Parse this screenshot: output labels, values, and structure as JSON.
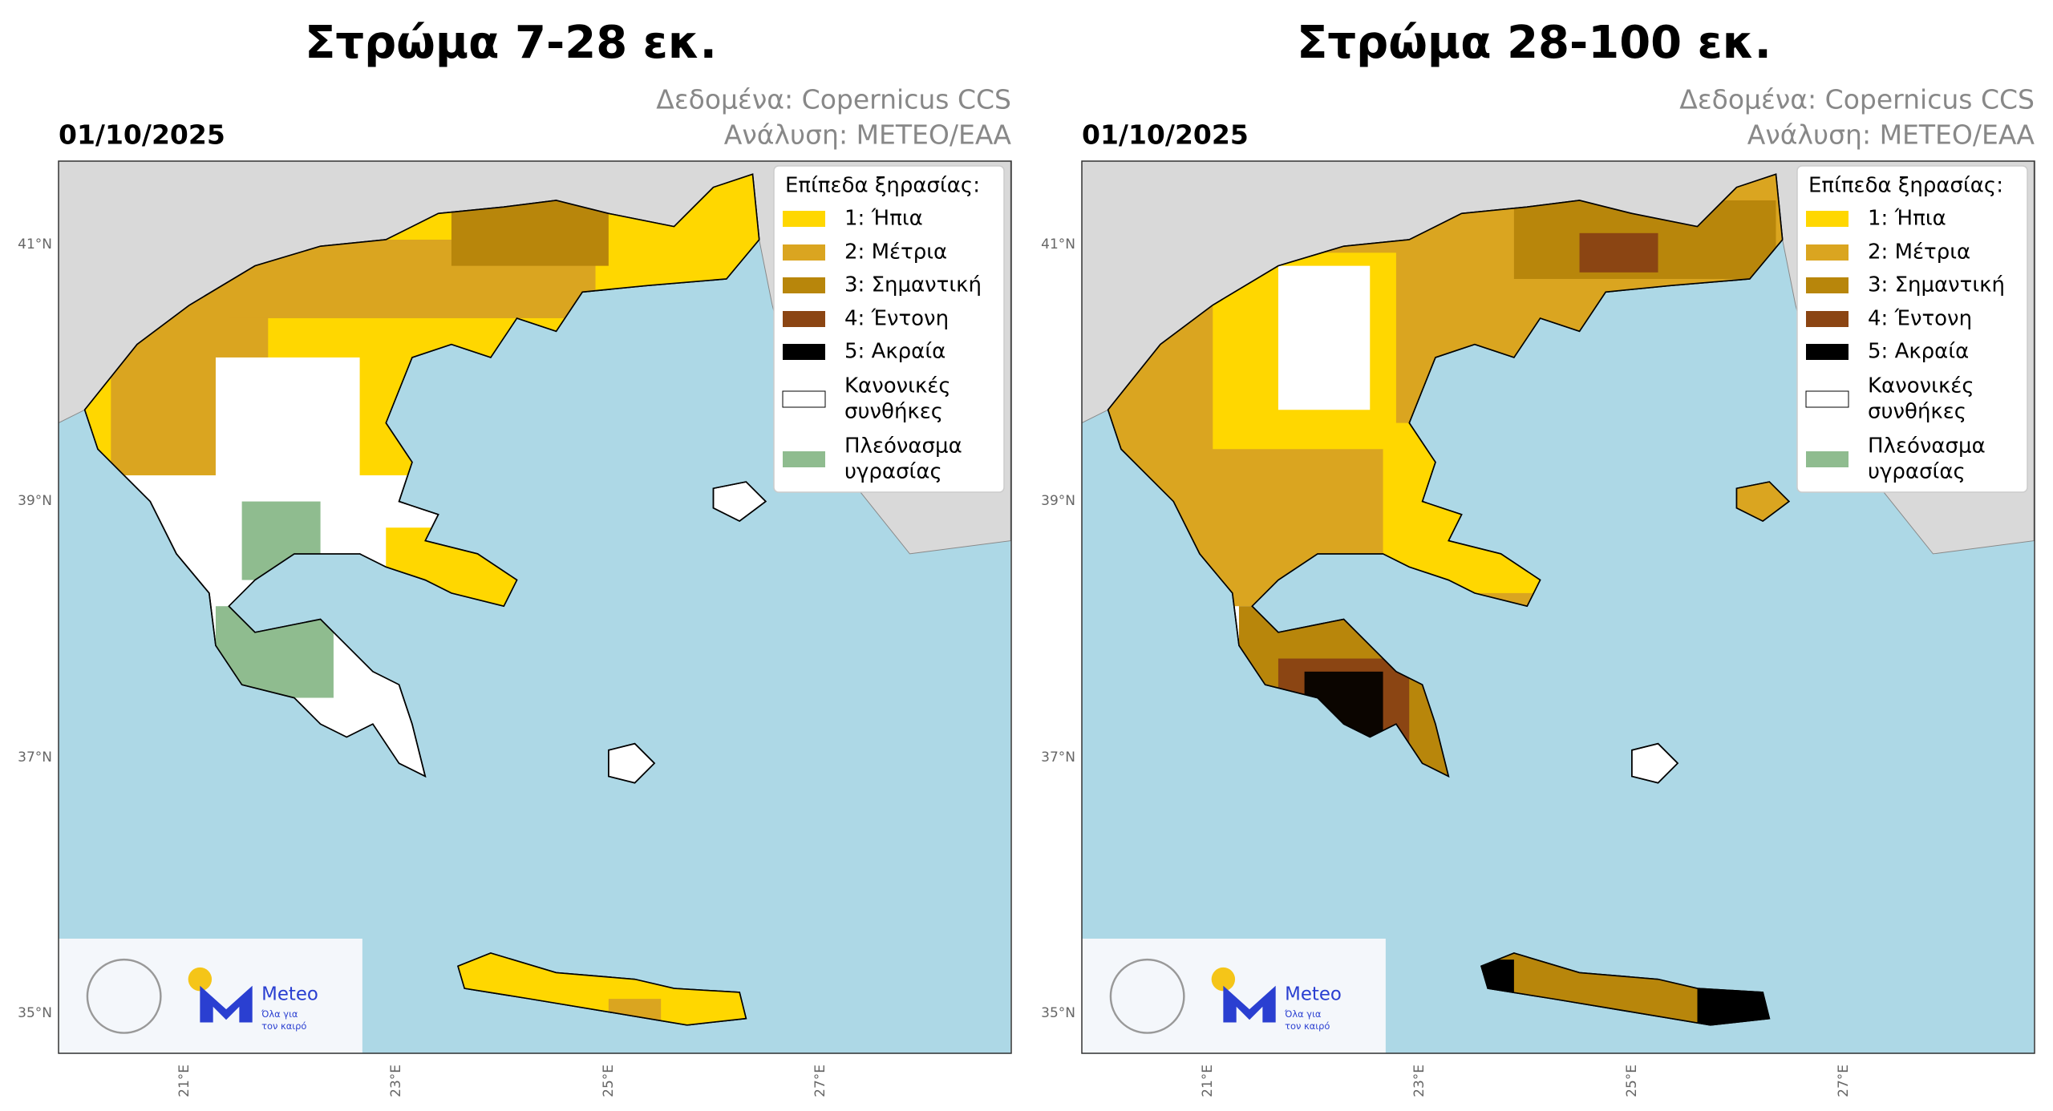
{
  "panels": [
    {
      "title": "Στρώμα 7-28 εκ.",
      "date": "01/10/2025",
      "source": [
        "Δεδομένα: Copernicus CCS",
        "Ανάλυση: ΜΕΤΕΟ/ΕΑΑ"
      ]
    },
    {
      "title": "Στρώμα 28-100 εκ.",
      "date": "01/10/2025",
      "source": [
        "Δεδομένα: Copernicus CCS",
        "Ανάλυση: ΜΕΤΕΟ/ΕΑΑ"
      ]
    }
  ],
  "legend": {
    "title": "Επίπεδα ξηρασίας:",
    "items": [
      {
        "label": [
          "1:  Ήπια"
        ],
        "color": "#ffd700"
      },
      {
        "label": [
          "2:  Μέτρια"
        ],
        "color": "#daa520"
      },
      {
        "label": [
          "3:  Σημαντική"
        ],
        "color": "#b8860b"
      },
      {
        "label": [
          "4:  Έντονη"
        ],
        "color": "#8b4513"
      },
      {
        "label": [
          "5:  Ακραία"
        ],
        "color": "#000000"
      },
      {
        "label": [
          "Κανονικές",
          "συνθήκες"
        ],
        "color": "#ffffff"
      },
      {
        "label": [
          "Πλεόνασμα",
          "υγρασίας"
        ],
        "color": "#8fbc8f"
      }
    ]
  },
  "lat_labels": [
    "41°N",
    "39°N",
    "37°N",
    "35°N"
  ],
  "lon_labels": [
    "21°E",
    "23°E",
    "25°E",
    "27°E"
  ],
  "logo": {
    "name": "Meteo",
    "tagline": [
      "Όλα για",
      "τον καιρό"
    ]
  }
}
